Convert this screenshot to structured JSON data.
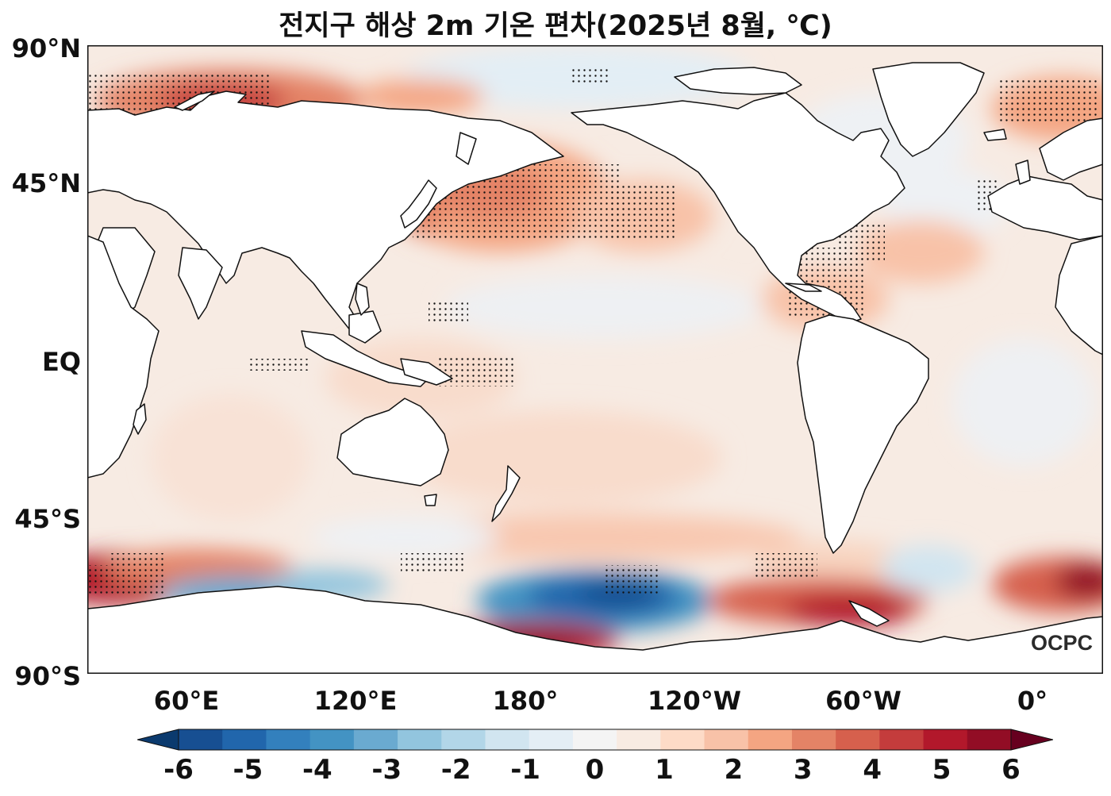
{
  "title": "전지구 해상 2m 기온 편차(2025년 8월, ℃)",
  "lat_labels": [
    "90°N",
    "45°N",
    "EQ",
    "45°S",
    "90°S"
  ],
  "lon_labels": [
    "60°E",
    "120°E",
    "180°",
    "120°W",
    "60°W",
    "0°"
  ],
  "colorbar": {
    "ticks": [
      "-6",
      "-5",
      "-4",
      "-3",
      "-2",
      "-1",
      "0",
      "1",
      "2",
      "3",
      "4",
      "5",
      "6"
    ],
    "colors": [
      "#0b3a6e",
      "#174f92",
      "#2166ac",
      "#3380bd",
      "#4393c3",
      "#6aaad0",
      "#92c5de",
      "#b2d6e8",
      "#d1e5f0",
      "#e4eef5",
      "#f4f4f4",
      "#f8ebe2",
      "#fddbc7",
      "#f8c2a8",
      "#f4a582",
      "#e48366",
      "#d6604d",
      "#c43c3c",
      "#b2182b",
      "#920d25",
      "#67001f"
    ]
  },
  "logo": "OCPC",
  "colors": {
    "ocean_base": "#f6ece4",
    "land": "#ffffff",
    "warm_strong": "#b2182b",
    "cold_strong": "#1a4f8f"
  }
}
